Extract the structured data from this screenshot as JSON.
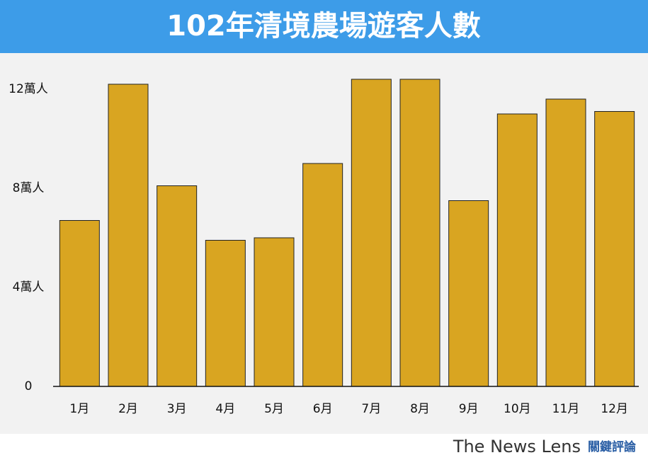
{
  "chart_data": {
    "type": "bar",
    "title": "102年清境農場遊客人數",
    "categories": [
      "1月",
      "2月",
      "3月",
      "4月",
      "5月",
      "6月",
      "7月",
      "8月",
      "9月",
      "10月",
      "11月",
      "12月"
    ],
    "values": [
      6.7,
      12.2,
      8.1,
      5.9,
      6.0,
      9.0,
      12.4,
      12.4,
      7.5,
      11.0,
      11.6,
      11.1
    ],
    "color": "#d9a521",
    "ylim": [
      0,
      13.4
    ],
    "yticks": [
      0,
      {
        "value": 4,
        "label": "4萬人"
      },
      {
        "value": 8,
        "label": "8萬人"
      },
      {
        "value": 12,
        "label": "12萬人"
      }
    ],
    "grid": false,
    "source": {
      "name": "The News Lens",
      "name_zh": "關鍵評論"
    }
  }
}
